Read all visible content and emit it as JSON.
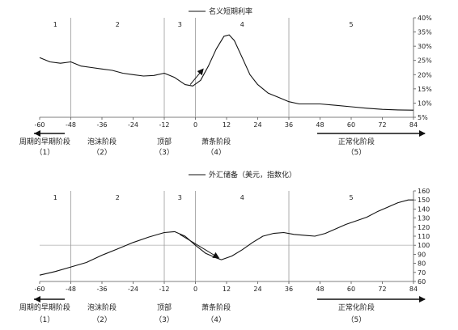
{
  "chart_data": [
    {
      "type": "line",
      "legend": "名义短期利率",
      "legend_position": "top-center",
      "x_ticks": [
        -60,
        -48,
        -36,
        -24,
        -12,
        0,
        12,
        24,
        36,
        48,
        60,
        72,
        84
      ],
      "xlim": [
        -60,
        84
      ],
      "ylim": [
        5,
        40
      ],
      "y_axis_side": "right",
      "y_ticks": [
        "5%",
        "10%",
        "15%",
        "20%",
        "25%",
        "30%",
        "35%",
        "40%"
      ],
      "region_dividers": [
        -48,
        -12,
        0,
        36
      ],
      "regions": [
        "1",
        "2",
        "3",
        "4",
        "5"
      ],
      "series": [
        {
          "name": "名义短期利率",
          "x": [
            -60,
            -56,
            -52,
            -48,
            -44,
            -40,
            -36,
            -32,
            -28,
            -24,
            -20,
            -16,
            -12,
            -8,
            -4,
            -1,
            2,
            5,
            8,
            11,
            13,
            15,
            18,
            21,
            24,
            28,
            32,
            36,
            40,
            44,
            48,
            54,
            60,
            66,
            72,
            78,
            84
          ],
          "y": [
            26,
            24.5,
            24,
            24.5,
            23,
            22.5,
            22,
            21.5,
            20.5,
            20,
            19.5,
            19.7,
            20.5,
            19,
            16.5,
            16,
            18,
            23,
            29,
            33.5,
            34,
            32,
            26,
            20,
            16.5,
            13.5,
            12,
            10.5,
            9.7,
            9.7,
            9.7,
            9.2,
            8.7,
            8.2,
            7.8,
            7.6,
            7.5
          ]
        }
      ],
      "annotations": [
        {
          "type": "arrow",
          "from": [
            -2,
            16.5
          ],
          "to": [
            3,
            22
          ]
        }
      ]
    },
    {
      "type": "line",
      "legend": "外汇储备（美元，指数化）",
      "legend_position": "top-center",
      "x_ticks": [
        -60,
        -48,
        -36,
        -24,
        -12,
        0,
        12,
        24,
        36,
        48,
        60,
        72,
        84
      ],
      "xlim": [
        -60,
        84
      ],
      "ylim": [
        60,
        160
      ],
      "y_axis_side": "right",
      "y_ticks": [
        60,
        70,
        80,
        90,
        100,
        110,
        120,
        130,
        140,
        150,
        160
      ],
      "reference_line": 100,
      "region_dividers": [
        -48,
        -12,
        0,
        36
      ],
      "regions": [
        "1",
        "2",
        "3",
        "4",
        "5"
      ],
      "series": [
        {
          "name": "外汇储备（美元，指数化）",
          "x": [
            -60,
            -54,
            -48,
            -42,
            -36,
            -30,
            -24,
            -18,
            -12,
            -8,
            -4,
            0,
            4,
            8,
            10,
            14,
            18,
            22,
            26,
            30,
            34,
            38,
            42,
            46,
            50,
            54,
            58,
            62,
            66,
            70,
            74,
            78,
            82,
            84
          ],
          "y": [
            67,
            71,
            76,
            81,
            89,
            96,
            103,
            109,
            114,
            115,
            110,
            100,
            91,
            86,
            84,
            88,
            95,
            103,
            110,
            113,
            114,
            112,
            111,
            110,
            113,
            118,
            123,
            127,
            131,
            137,
            142,
            147,
            150,
            150
          ]
        }
      ],
      "annotations": [
        {
          "type": "arrow",
          "from": [
            -6,
            112
          ],
          "to": [
            9,
            86
          ]
        }
      ]
    }
  ],
  "phase_labels": [
    {
      "name": "周期的早期阶段",
      "num": "（1）"
    },
    {
      "name": "泡沫阶段",
      "num": "（2）"
    },
    {
      "name": "顶部",
      "num": "（3）"
    },
    {
      "name": "萧条阶段",
      "num": "（4）"
    },
    {
      "name": "正常化阶段",
      "num": "（5）"
    }
  ]
}
